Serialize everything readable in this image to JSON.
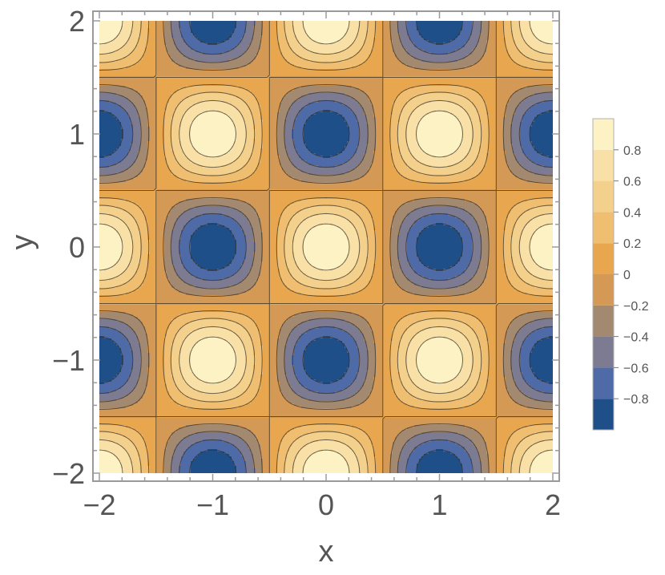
{
  "chart_data": {
    "type": "heatmap",
    "subtype": "contour",
    "function_values_sampled": "cos(pi*x)*cos(pi*y)",
    "xlabel": "x",
    "ylabel": "y",
    "xlim": [
      -2,
      2
    ],
    "ylim": [
      -2,
      2
    ],
    "x_ticks": [
      "−2",
      "−1",
      "0",
      "1",
      "2"
    ],
    "y_ticks": [
      "2",
      "1",
      "0",
      "−1",
      "−2"
    ],
    "x_tick_values": [
      -2,
      -1,
      0,
      1,
      2
    ],
    "y_tick_values": [
      2,
      1,
      0,
      -1,
      -2
    ],
    "contour_levels": [
      -0.8,
      -0.6,
      -0.4,
      -0.2,
      0,
      0.2,
      0.4,
      0.6,
      0.8
    ],
    "value_range": [
      -1,
      1
    ],
    "legend": {
      "placement": "right",
      "labels": [
        "0.8",
        "0.6",
        "0.4",
        "0.2",
        "0",
        "−0.2",
        "−0.4",
        "−0.6",
        "−0.8"
      ],
      "label_values": [
        0.8,
        0.6,
        0.4,
        0.2,
        0,
        -0.2,
        -0.4,
        -0.6,
        -0.8
      ]
    },
    "band_colors": [
      "#1f4f89",
      "#4f6ba7",
      "#7c7b92",
      "#a2896f",
      "#d59956",
      "#e8a74e",
      "#efbe70",
      "#f4d08d",
      "#f8e0a6",
      "#fdf2c4"
    ],
    "contour_line_color": "#3a3020",
    "grid": false
  }
}
